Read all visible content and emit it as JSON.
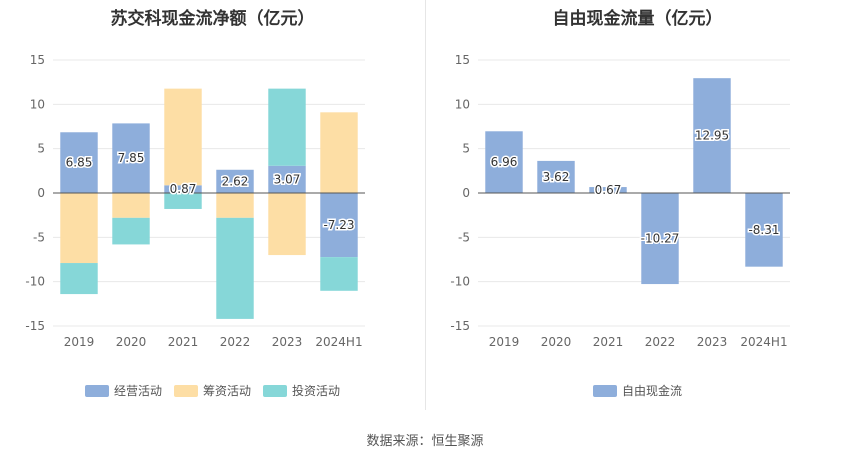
{
  "footer": {
    "source": "数据来源：恒生聚源"
  },
  "chart_data": [
    {
      "type": "bar",
      "title": "苏交科现金流净额（亿元）",
      "stacked": true,
      "categories": [
        "2019",
        "2020",
        "2021",
        "2022",
        "2023",
        "2024H1"
      ],
      "ylim": [
        -15,
        15
      ],
      "yticks": [
        15,
        10,
        5,
        0,
        -5,
        -10,
        -15
      ],
      "grid": true,
      "legend_position": "bottom",
      "series": [
        {
          "name": "经营活动",
          "color": "#8eaedb",
          "values": [
            6.85,
            7.85,
            0.87,
            2.62,
            3.07,
            -7.23
          ],
          "show_labels": true
        },
        {
          "name": "筹资活动",
          "color": "#fddea5",
          "values": [
            -7.9,
            -2.8,
            10.9,
            -2.8,
            -7.0,
            9.1
          ],
          "show_labels": false
        },
        {
          "name": "投资活动",
          "color": "#86d7d8",
          "values": [
            -3.5,
            -3.0,
            -1.8,
            -11.4,
            8.7,
            -3.8
          ],
          "show_labels": false
        }
      ]
    },
    {
      "type": "bar",
      "title": "自由现金流量（亿元）",
      "categories": [
        "2019",
        "2020",
        "2021",
        "2022",
        "2023",
        "2024H1"
      ],
      "ylim": [
        -15,
        15
      ],
      "yticks": [
        15,
        10,
        5,
        0,
        -5,
        -10,
        -15
      ],
      "grid": true,
      "legend_position": "bottom",
      "series": [
        {
          "name": "自由现金流",
          "color": "#8eaedb",
          "values": [
            6.96,
            3.62,
            0.67,
            -10.27,
            12.95,
            -8.31
          ],
          "show_labels": true
        }
      ]
    }
  ]
}
